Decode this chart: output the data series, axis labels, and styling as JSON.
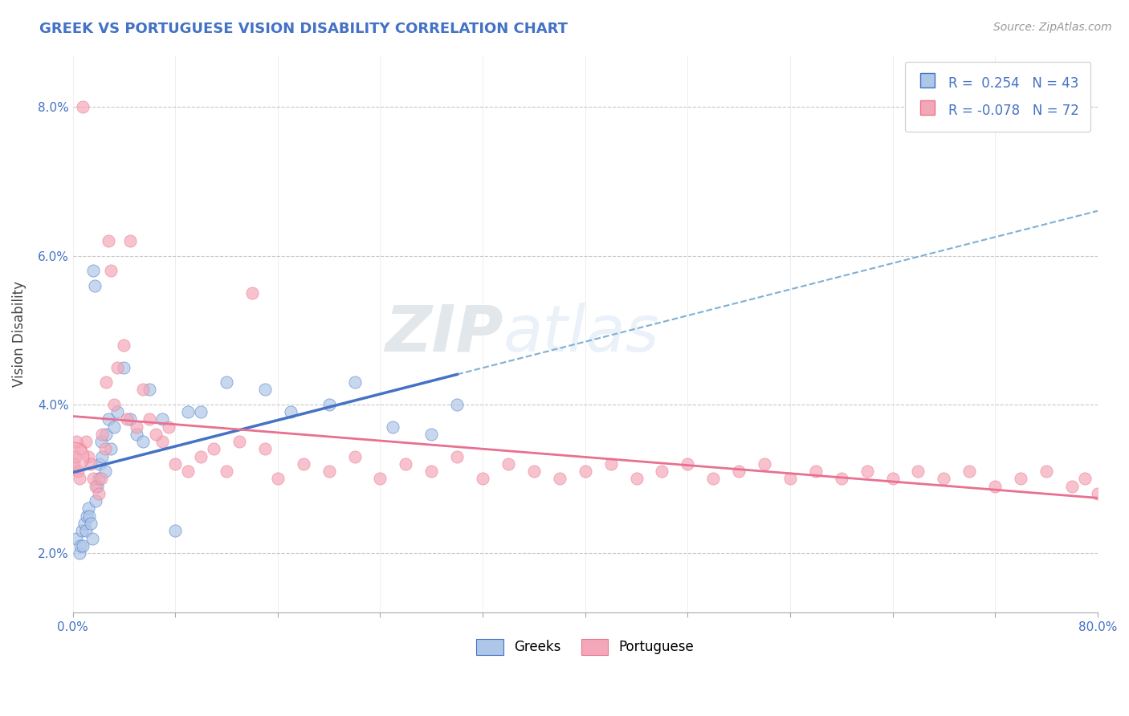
{
  "title": "GREEK VS PORTUGUESE VISION DISABILITY CORRELATION CHART",
  "source": "Source: ZipAtlas.com",
  "ylabel": "Vision Disability",
  "xlim": [
    0.0,
    80.0
  ],
  "ylim": [
    1.2,
    8.7
  ],
  "yticks": [
    2.0,
    4.0,
    6.0,
    8.0
  ],
  "xticks": [
    0,
    8,
    16,
    24,
    32,
    40,
    48,
    56,
    64,
    72,
    80
  ],
  "greek_R": 0.254,
  "greek_N": 43,
  "portuguese_R": -0.078,
  "portuguese_N": 72,
  "watermark_zip": "ZIP",
  "watermark_atlas": "atlas",
  "greek_fill_color": "#aec6e8",
  "greek_edge_color": "#4472c4",
  "portuguese_fill_color": "#f4a7b9",
  "portuguese_edge_color": "#e8758a",
  "greek_line_color": "#4472c4",
  "portuguese_line_color": "#e87090",
  "dash_line_color": "#7eb0d4",
  "background_color": "#ffffff",
  "grid_color": "#c8c8c8",
  "title_color": "#4472c4",
  "source_color": "#999999",
  "legend_color": "#4472c4",
  "greeks_x": [
    0.3,
    0.5,
    0.6,
    0.7,
    0.8,
    0.9,
    1.0,
    1.1,
    1.2,
    1.3,
    1.4,
    1.5,
    1.6,
    1.7,
    1.8,
    1.9,
    2.0,
    2.1,
    2.2,
    2.3,
    2.5,
    2.6,
    2.8,
    3.0,
    3.2,
    3.5,
    4.0,
    4.5,
    5.0,
    5.5,
    6.0,
    7.0,
    8.0,
    9.0,
    10.0,
    12.0,
    15.0,
    17.0,
    20.0,
    22.0,
    25.0,
    28.0,
    30.0
  ],
  "greeks_y": [
    2.2,
    2.0,
    2.1,
    2.3,
    2.1,
    2.4,
    2.3,
    2.5,
    2.6,
    2.5,
    2.4,
    2.2,
    5.8,
    5.6,
    2.7,
    2.9,
    3.0,
    3.2,
    3.5,
    3.3,
    3.1,
    3.6,
    3.8,
    3.4,
    3.7,
    3.9,
    4.5,
    3.8,
    3.6,
    3.5,
    4.2,
    3.8,
    2.3,
    3.9,
    3.9,
    4.3,
    4.2,
    3.9,
    4.0,
    4.3,
    3.7,
    3.6,
    4.0
  ],
  "portuguese_x": [
    0.1,
    0.2,
    0.4,
    0.5,
    0.6,
    0.8,
    1.0,
    1.2,
    1.4,
    1.6,
    1.8,
    2.0,
    2.2,
    2.5,
    2.8,
    3.0,
    3.5,
    4.0,
    4.5,
    5.0,
    6.0,
    7.0,
    8.0,
    9.0,
    10.0,
    11.0,
    12.0,
    13.0,
    14.0,
    15.0,
    16.0,
    18.0,
    20.0,
    22.0,
    24.0,
    26.0,
    28.0,
    30.0,
    32.0,
    34.0,
    36.0,
    38.0,
    40.0,
    42.0,
    44.0,
    46.0,
    48.0,
    50.0,
    52.0,
    54.0,
    56.0,
    58.0,
    60.0,
    62.0,
    64.0,
    66.0,
    68.0,
    70.0,
    72.0,
    74.0,
    76.0,
    78.0,
    79.0,
    80.0,
    0.3,
    2.3,
    2.6,
    3.2,
    4.2,
    5.5,
    6.5,
    7.5
  ],
  "portuguese_y": [
    3.2,
    3.3,
    3.1,
    3.0,
    3.4,
    8.0,
    3.5,
    3.3,
    3.2,
    3.0,
    2.9,
    2.8,
    3.0,
    3.4,
    6.2,
    5.8,
    4.5,
    4.8,
    6.2,
    3.7,
    3.8,
    3.5,
    3.2,
    3.1,
    3.3,
    3.4,
    3.1,
    3.5,
    5.5,
    3.4,
    3.0,
    3.2,
    3.1,
    3.3,
    3.0,
    3.2,
    3.1,
    3.3,
    3.0,
    3.2,
    3.1,
    3.0,
    3.1,
    3.2,
    3.0,
    3.1,
    3.2,
    3.0,
    3.1,
    3.2,
    3.0,
    3.1,
    3.0,
    3.1,
    3.0,
    3.1,
    3.0,
    3.1,
    2.9,
    3.0,
    3.1,
    2.9,
    3.0,
    2.8,
    3.5,
    3.6,
    4.3,
    4.0,
    3.8,
    4.2,
    3.6,
    3.7
  ]
}
